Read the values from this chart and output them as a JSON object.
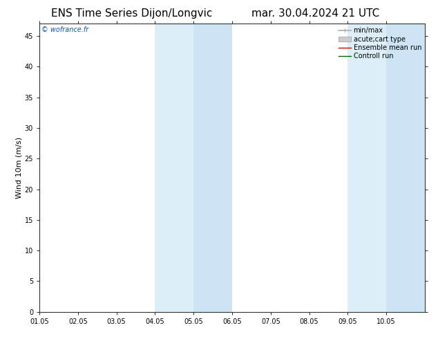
{
  "title_left": "ENS Time Series Dijon/Longvic",
  "title_right": "mar. 30.04.2024 21 UTC",
  "watermark": "© wofrance.fr",
  "ylabel": "Wind 10m (m/s)",
  "xlim": [
    0,
    10
  ],
  "ylim": [
    0,
    47
  ],
  "yticks": [
    0,
    5,
    10,
    15,
    20,
    25,
    30,
    35,
    40,
    45
  ],
  "xtick_labels": [
    "01.05",
    "02.05",
    "03.05",
    "04.05",
    "05.05",
    "06.05",
    "07.05",
    "08.05",
    "09.05",
    "10.05"
  ],
  "xtick_positions": [
    0,
    1,
    2,
    3,
    4,
    5,
    6,
    7,
    8,
    9
  ],
  "shaded_bands": [
    {
      "xstart": 3,
      "xend": 4,
      "color": "#ddeef8"
    },
    {
      "xstart": 4,
      "xend": 5,
      "color": "#cce4f4"
    },
    {
      "xstart": 8,
      "xend": 9,
      "color": "#ddeef8"
    },
    {
      "xstart": 9,
      "xend": 10,
      "color": "#cce4f4"
    }
  ],
  "legend_items": [
    {
      "label": "min/max",
      "color": "#aaaaaa",
      "lw": 1.2
    },
    {
      "label": "acute;cart type",
      "color": "#cccccc",
      "lw": 6
    },
    {
      "label": "Ensemble mean run",
      "color": "#cc0000",
      "lw": 1.0
    },
    {
      "label": "Controll run",
      "color": "#006600",
      "lw": 1.0
    }
  ],
  "bg_color": "#ffffff",
  "title_fontsize": 11,
  "tick_fontsize": 7,
  "ylabel_fontsize": 8,
  "legend_fontsize": 7
}
